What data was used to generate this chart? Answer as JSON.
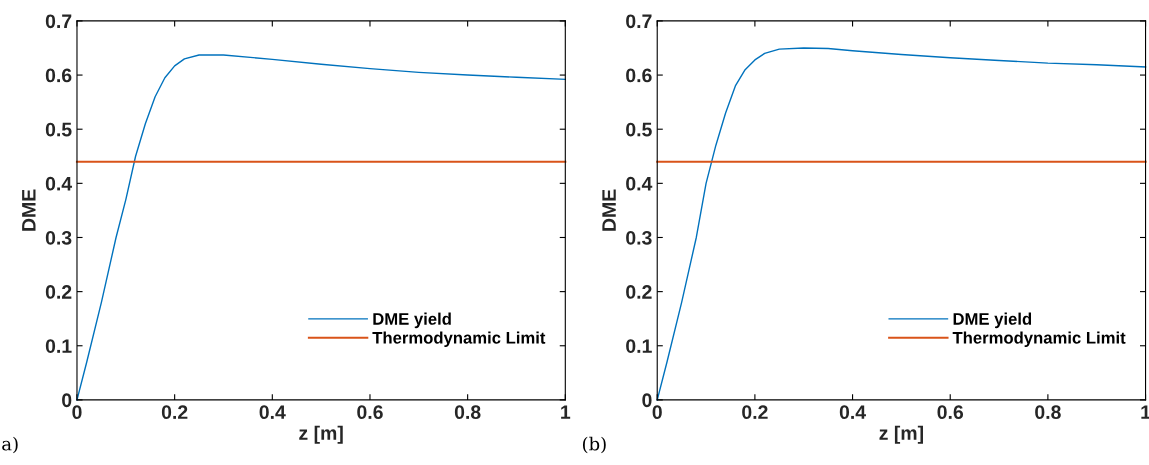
{
  "chart_data": [
    {
      "type": "line",
      "xlabel": "z [m]",
      "ylabel": "DME",
      "xlim": [
        0,
        1
      ],
      "ylim": [
        0,
        0.7
      ],
      "xticks": [
        0,
        0.2,
        0.4,
        0.6,
        0.8,
        1
      ],
      "yticks": [
        0,
        0.1,
        0.2,
        0.3,
        0.4,
        0.5,
        0.6,
        0.7
      ],
      "legend": "bottom right",
      "grid": false,
      "annotations": [
        "a)"
      ],
      "series": [
        {
          "name": "DME yield",
          "color": "#0072bd",
          "x": [
            0,
            0.02,
            0.05,
            0.08,
            0.1,
            0.12,
            0.14,
            0.16,
            0.18,
            0.2,
            0.22,
            0.25,
            0.3,
            0.4,
            0.5,
            0.6,
            0.7,
            0.8,
            0.9,
            1.0
          ],
          "values": [
            0,
            0.07,
            0.18,
            0.3,
            0.37,
            0.45,
            0.51,
            0.56,
            0.595,
            0.617,
            0.63,
            0.637,
            0.637,
            0.629,
            0.62,
            0.612,
            0.605,
            0.6,
            0.596,
            0.592
          ]
        },
        {
          "name": "Thermodynamic Limit",
          "color": "#d95319",
          "x": [
            0,
            1
          ],
          "values": [
            0.44,
            0.44
          ]
        }
      ]
    },
    {
      "type": "line",
      "xlabel": "z [m]",
      "ylabel": "DME",
      "xlim": [
        0,
        1
      ],
      "ylim": [
        0,
        0.7
      ],
      "xticks": [
        0,
        0.2,
        0.4,
        0.6,
        0.8,
        1
      ],
      "yticks": [
        0,
        0.1,
        0.2,
        0.3,
        0.4,
        0.5,
        0.6,
        0.7
      ],
      "legend": "bottom right",
      "grid": false,
      "annotations": [
        "(b)"
      ],
      "series": [
        {
          "name": "DME yield",
          "color": "#0072bd",
          "x": [
            0,
            0.02,
            0.05,
            0.08,
            0.1,
            0.12,
            0.14,
            0.16,
            0.18,
            0.2,
            0.22,
            0.25,
            0.3,
            0.35,
            0.4,
            0.5,
            0.6,
            0.7,
            0.8,
            0.9,
            1.0
          ],
          "values": [
            0,
            0.07,
            0.18,
            0.3,
            0.4,
            0.47,
            0.53,
            0.58,
            0.61,
            0.628,
            0.64,
            0.648,
            0.65,
            0.649,
            0.645,
            0.638,
            0.632,
            0.627,
            0.622,
            0.619,
            0.615
          ]
        },
        {
          "name": "Thermodynamic Limit",
          "color": "#d95319",
          "x": [
            0,
            1
          ],
          "values": [
            0.44,
            0.44
          ]
        }
      ]
    }
  ]
}
